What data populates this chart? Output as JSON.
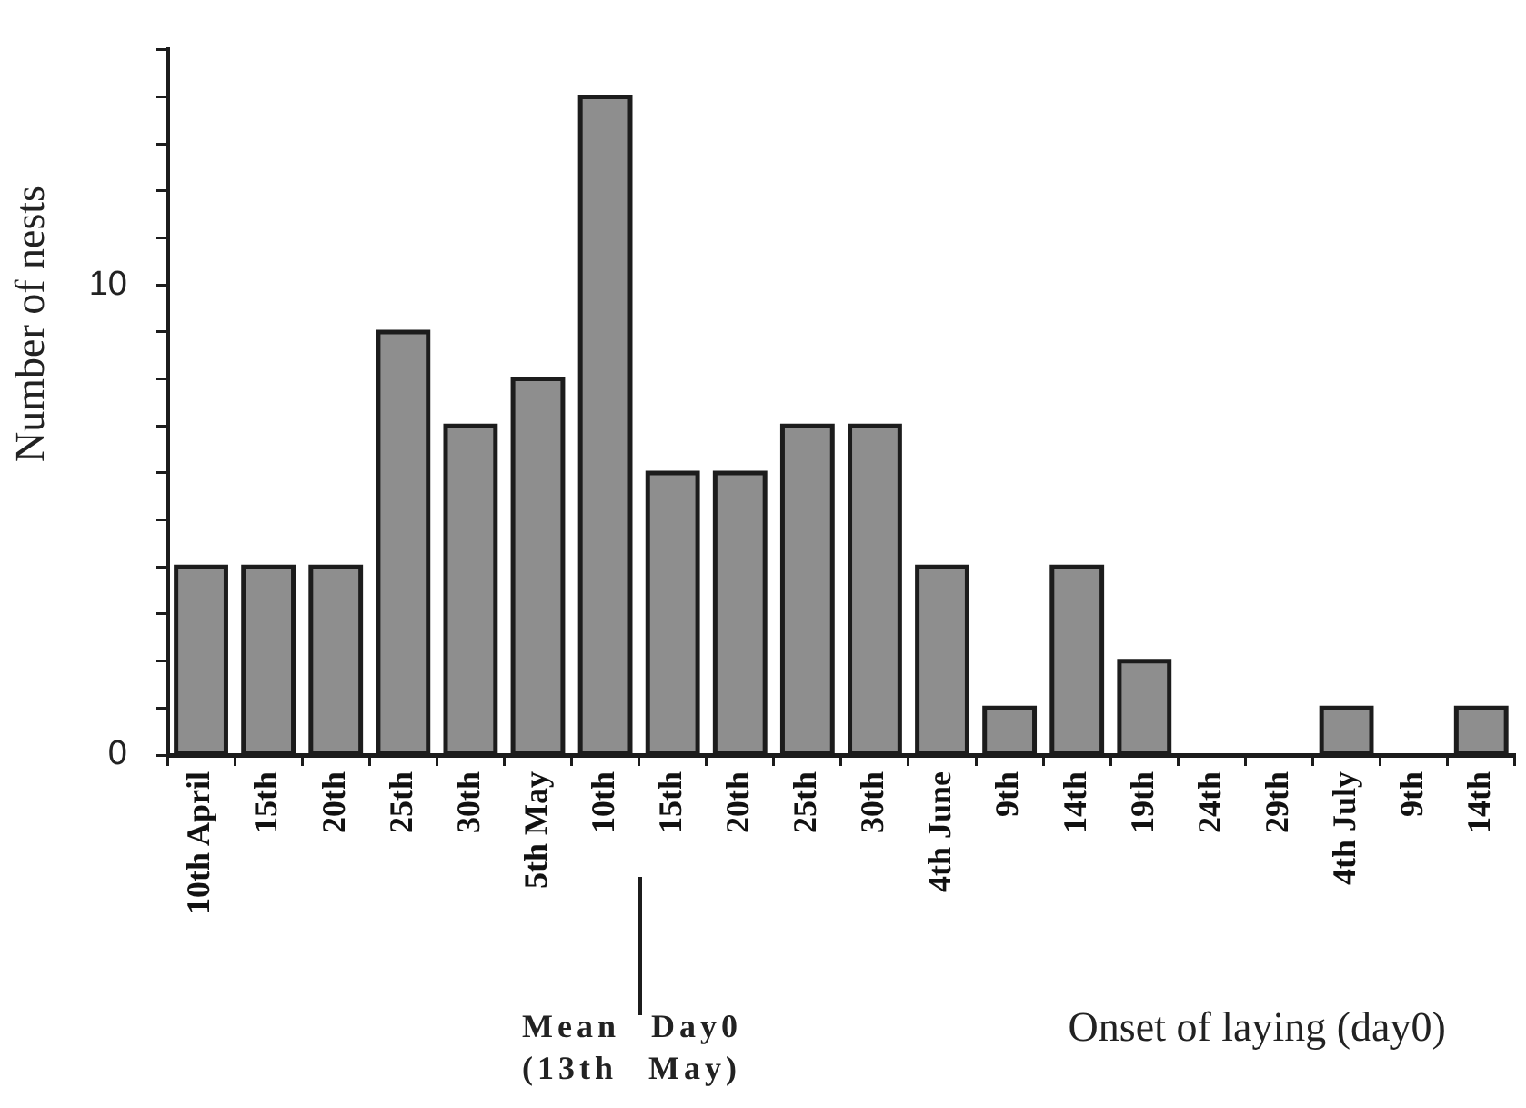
{
  "chart_data": {
    "type": "bar",
    "categories": [
      "10th April",
      "15th",
      "20th",
      "25th",
      "30th",
      "5th May",
      "10th",
      "15th",
      "20th",
      "25th",
      "30th",
      "4th June",
      "9th",
      "14th",
      "19th",
      "24th",
      "29th",
      "4th July",
      "9th",
      "14th"
    ],
    "values": [
      4,
      4,
      4,
      9,
      7,
      8,
      14,
      6,
      6,
      7,
      7,
      4,
      1,
      4,
      2,
      0,
      0,
      1,
      0,
      1
    ],
    "color": "#8e8e8e",
    "ylim": [
      0,
      15
    ],
    "yticks": [
      0,
      {
        "value": 1,
        "label": null
      },
      {
        "value": 2,
        "label": null
      },
      {
        "value": 3,
        "label": null
      },
      {
        "value": 4,
        "label": null
      },
      {
        "value": 5,
        "label": null
      },
      {
        "value": 6,
        "label": null
      },
      {
        "value": 7,
        "label": null
      },
      {
        "value": 8,
        "label": null
      },
      {
        "value": 9,
        "label": null
      },
      10,
      {
        "value": 11,
        "label": null
      },
      {
        "value": 12,
        "label": null
      },
      {
        "value": 13,
        "label": null
      },
      {
        "value": 14,
        "label": null
      },
      {
        "value": 15,
        "label": null
      }
    ],
    "ylabel": "Number of nests",
    "xlabel": "Onset of laying (day0)",
    "annotations": [
      "Mean Day0",
      "(13th May)"
    ],
    "grid": false,
    "legend": false
  }
}
